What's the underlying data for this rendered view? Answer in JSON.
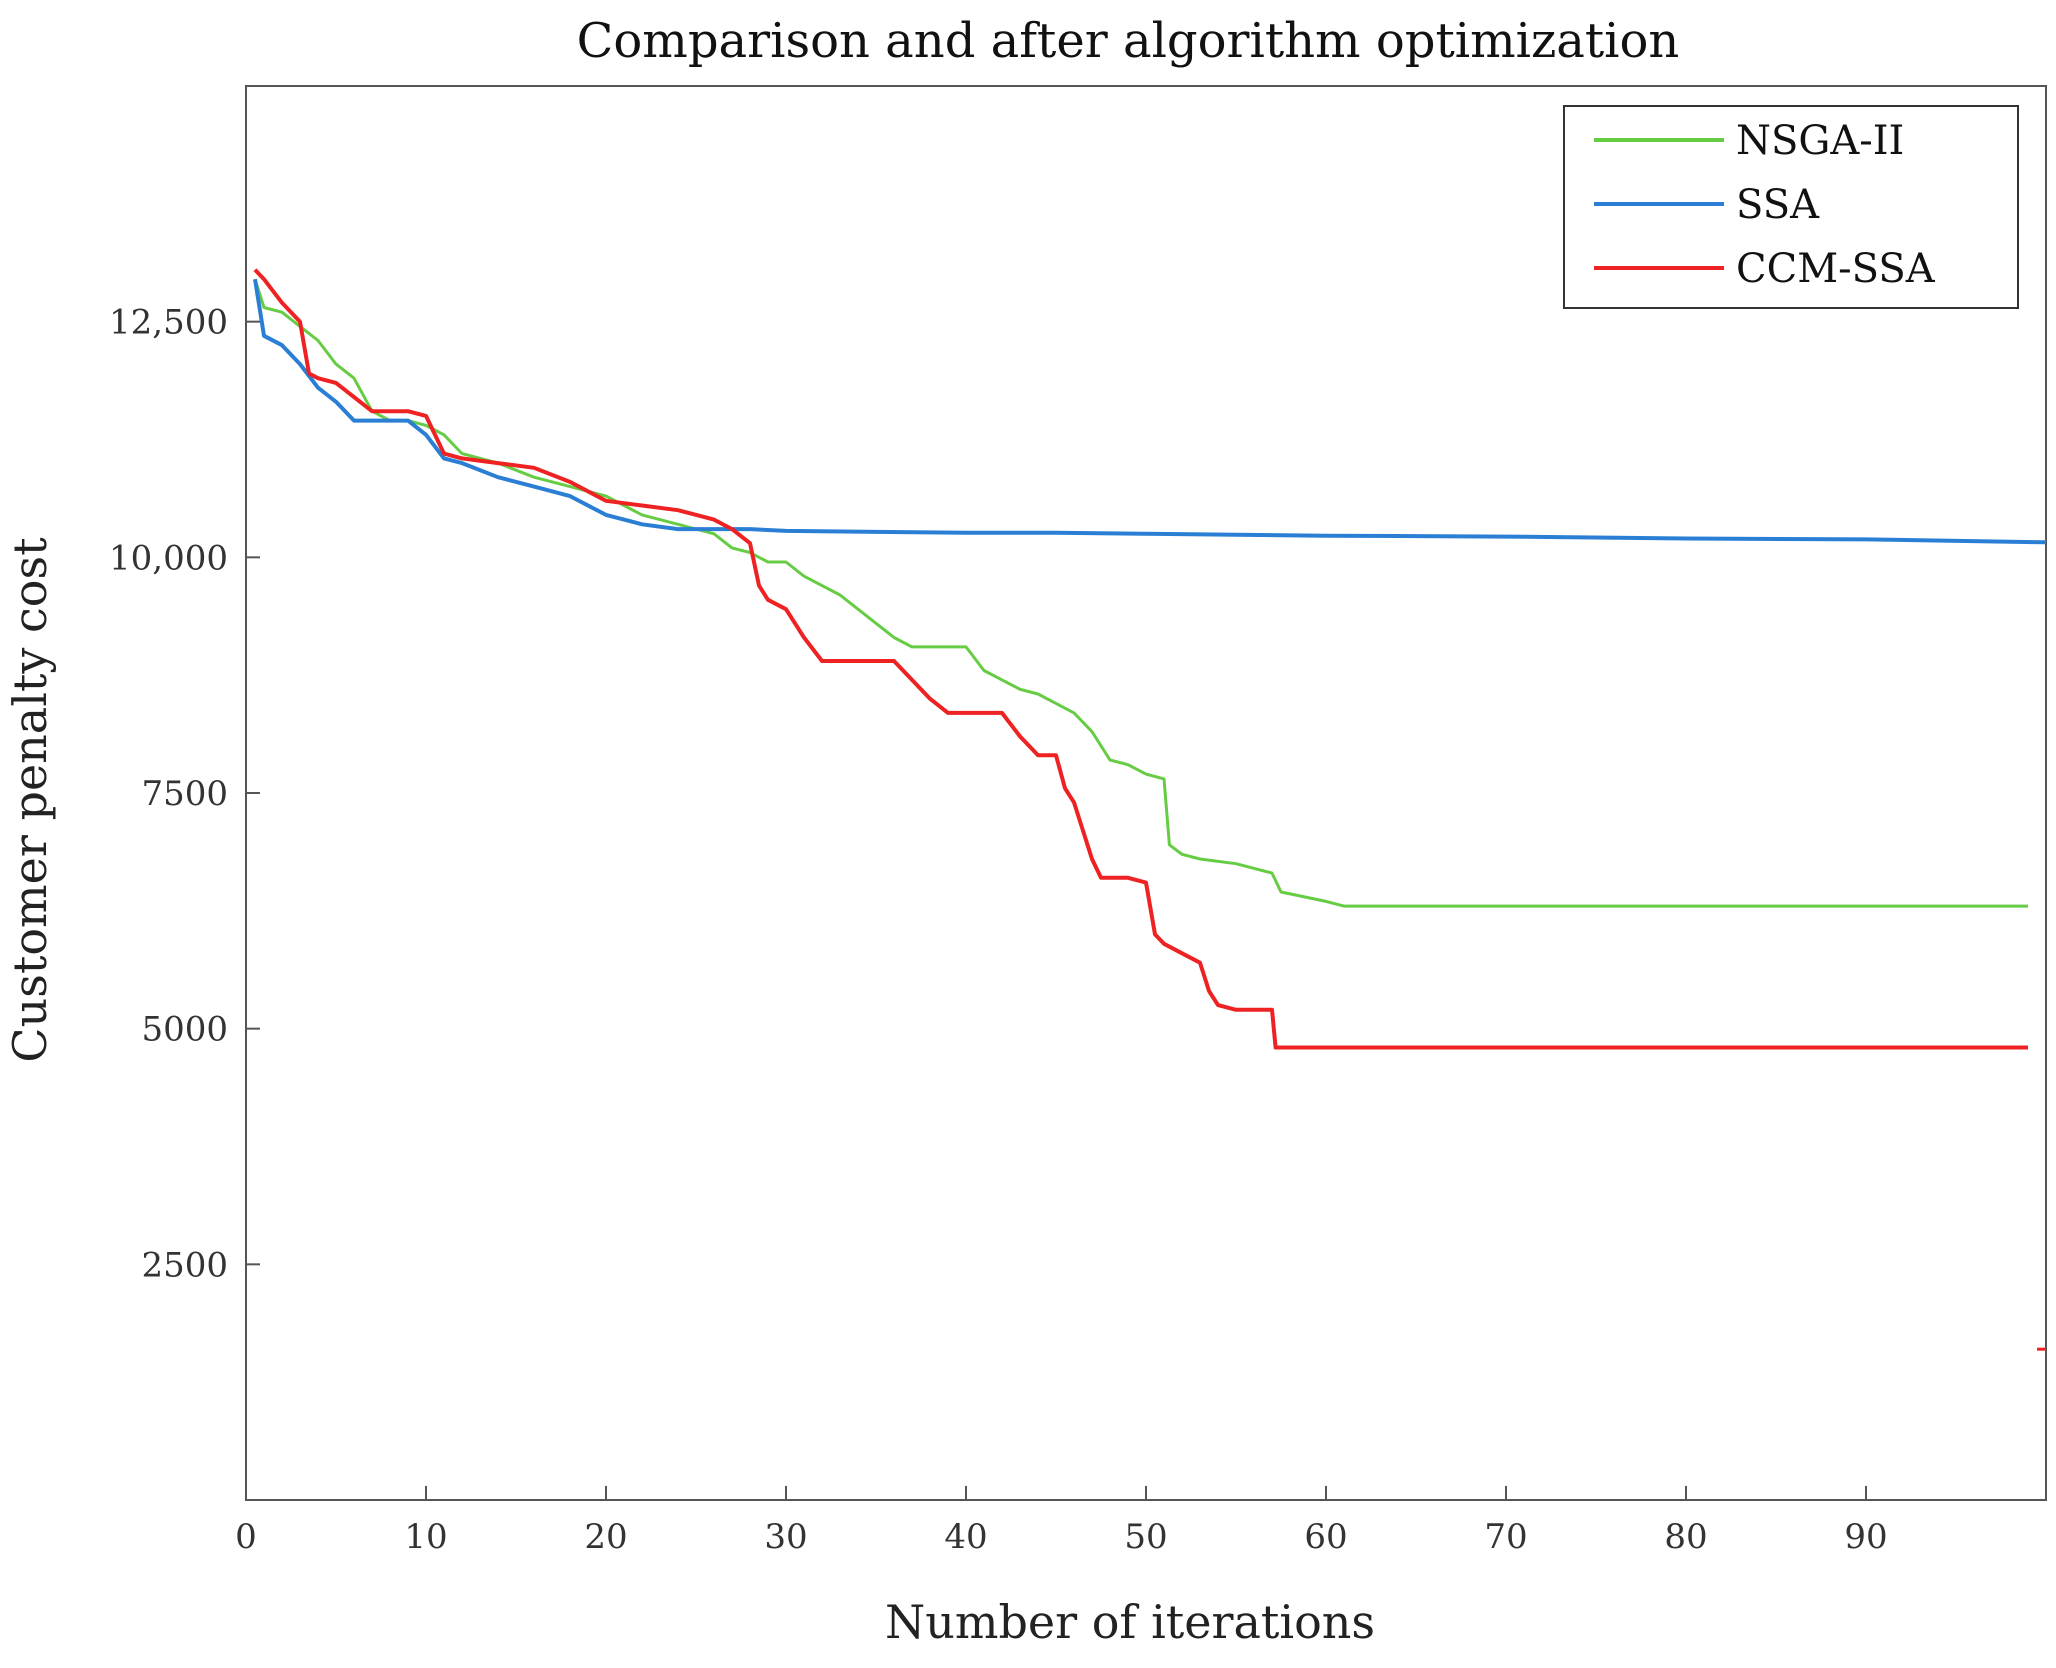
{
  "chart_data": {
    "type": "line",
    "title": "Comparison and after algorithm optimization",
    "xlabel": "Number of iterations",
    "ylabel": "Customer penalty cost",
    "xlim": [
      0,
      100
    ],
    "ylim": [
      0,
      15000
    ],
    "x_ticks": [
      0,
      10,
      20,
      30,
      40,
      50,
      60,
      70,
      80,
      90
    ],
    "x_tick_labels": [
      "0",
      "10",
      "20",
      "30",
      "40",
      "50",
      "60",
      "70",
      "80",
      "90"
    ],
    "y_ticks": [
      2500,
      5000,
      7500,
      10000,
      12500
    ],
    "y_tick_labels": [
      "2500",
      "5000",
      "7500",
      "10,000",
      "12,500"
    ],
    "legend_position": "top-right",
    "series": [
      {
        "name": "NSGA-II",
        "color": "#66cc44",
        "points": [
          [
            0.5,
            12950
          ],
          [
            1,
            12650
          ],
          [
            2,
            12600
          ],
          [
            3,
            12450
          ],
          [
            4,
            12300
          ],
          [
            5,
            12050
          ],
          [
            6,
            11900
          ],
          [
            7,
            11550
          ],
          [
            8,
            11450
          ],
          [
            9,
            11450
          ],
          [
            10,
            11400
          ],
          [
            11,
            11300
          ],
          [
            12,
            11100
          ],
          [
            14,
            11000
          ],
          [
            16,
            10850
          ],
          [
            18,
            10750
          ],
          [
            20,
            10650
          ],
          [
            21,
            10550
          ],
          [
            22,
            10450
          ],
          [
            24,
            10350
          ],
          [
            26,
            10250
          ],
          [
            27,
            10100
          ],
          [
            28,
            10050
          ],
          [
            29,
            9950
          ],
          [
            30,
            9950
          ],
          [
            31,
            9800
          ],
          [
            32,
            9700
          ],
          [
            33,
            9600
          ],
          [
            34,
            9450
          ],
          [
            35,
            9300
          ],
          [
            36,
            9150
          ],
          [
            37,
            9050
          ],
          [
            38,
            9050
          ],
          [
            39,
            9050
          ],
          [
            40,
            9050
          ],
          [
            41,
            8800
          ],
          [
            42,
            8700
          ],
          [
            43,
            8600
          ],
          [
            44,
            8550
          ],
          [
            45,
            8450
          ],
          [
            46,
            8350
          ],
          [
            47,
            8150
          ],
          [
            48,
            7850
          ],
          [
            49,
            7800
          ],
          [
            50,
            7700
          ],
          [
            51,
            7650
          ],
          [
            51.3,
            6950
          ],
          [
            52,
            6850
          ],
          [
            53,
            6800
          ],
          [
            55,
            6750
          ],
          [
            57,
            6650
          ],
          [
            57.5,
            6450
          ],
          [
            60,
            6350
          ],
          [
            61,
            6300
          ],
          [
            70,
            6300
          ],
          [
            80,
            6300
          ],
          [
            90,
            6300
          ],
          [
            99,
            6300
          ]
        ]
      },
      {
        "name": "SSA",
        "color": "#2a7fd4",
        "points": [
          [
            0.5,
            12950
          ],
          [
            1,
            12350
          ],
          [
            2,
            12250
          ],
          [
            3,
            12050
          ],
          [
            4,
            11800
          ],
          [
            5,
            11650
          ],
          [
            6,
            11450
          ],
          [
            7,
            11450
          ],
          [
            8,
            11450
          ],
          [
            9,
            11450
          ],
          [
            10,
            11300
          ],
          [
            11,
            11050
          ],
          [
            12,
            11000
          ],
          [
            14,
            10850
          ],
          [
            16,
            10750
          ],
          [
            18,
            10650
          ],
          [
            20,
            10450
          ],
          [
            22,
            10350
          ],
          [
            24,
            10300
          ],
          [
            26,
            10300
          ],
          [
            28,
            10300
          ],
          [
            30,
            10280
          ],
          [
            35,
            10270
          ],
          [
            40,
            10260
          ],
          [
            45,
            10260
          ],
          [
            50,
            10250
          ],
          [
            55,
            10240
          ],
          [
            60,
            10230
          ],
          [
            70,
            10220
          ],
          [
            80,
            10200
          ],
          [
            90,
            10190
          ],
          [
            100,
            10160
          ]
        ]
      },
      {
        "name": "CCM-SSA",
        "color": "#ee2222",
        "points": [
          [
            0.5,
            13050
          ],
          [
            1,
            12950
          ],
          [
            2,
            12700
          ],
          [
            3,
            12500
          ],
          [
            3.5,
            11950
          ],
          [
            4,
            11900
          ],
          [
            5,
            11850
          ],
          [
            6,
            11700
          ],
          [
            7,
            11550
          ],
          [
            8,
            11550
          ],
          [
            9,
            11550
          ],
          [
            10,
            11500
          ],
          [
            11,
            11100
          ],
          [
            12,
            11050
          ],
          [
            14,
            11000
          ],
          [
            16,
            10950
          ],
          [
            18,
            10800
          ],
          [
            20,
            10600
          ],
          [
            22,
            10550
          ],
          [
            24,
            10500
          ],
          [
            26,
            10400
          ],
          [
            27,
            10300
          ],
          [
            28,
            10150
          ],
          [
            28.5,
            9700
          ],
          [
            29,
            9550
          ],
          [
            30,
            9450
          ],
          [
            31,
            9150
          ],
          [
            32,
            8900
          ],
          [
            34,
            8900
          ],
          [
            36,
            8900
          ],
          [
            37,
            8700
          ],
          [
            38,
            8500
          ],
          [
            39,
            8350
          ],
          [
            42,
            8350
          ],
          [
            43,
            8100
          ],
          [
            44,
            7900
          ],
          [
            45,
            7900
          ],
          [
            45.5,
            7550
          ],
          [
            46,
            7400
          ],
          [
            46.5,
            7100
          ],
          [
            47,
            6800
          ],
          [
            47.5,
            6600
          ],
          [
            49,
            6600
          ],
          [
            50,
            6550
          ],
          [
            50.5,
            6000
          ],
          [
            51,
            5900
          ],
          [
            52,
            5800
          ],
          [
            53,
            5700
          ],
          [
            53.5,
            5400
          ],
          [
            54,
            5250
          ],
          [
            55,
            5200
          ],
          [
            56,
            5200
          ],
          [
            57,
            5200
          ],
          [
            57.2,
            4800
          ],
          [
            60,
            4800
          ],
          [
            70,
            4800
          ],
          [
            80,
            4800
          ],
          [
            90,
            4800
          ],
          [
            99,
            4800
          ]
        ]
      }
    ]
  }
}
